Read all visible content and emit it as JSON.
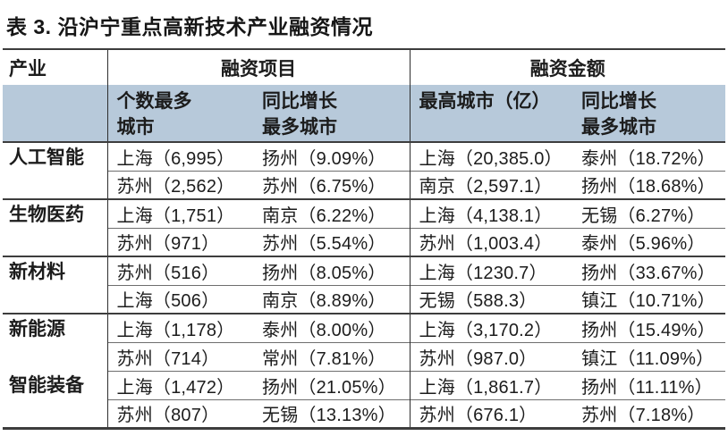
{
  "title": "表 3. 沿沪宁重点高新技术产业融资情况",
  "colors": {
    "header_bg": "#b7c9da",
    "border_dark": "#3d3d3d",
    "border_light": "#6e6e6e",
    "text": "#1c1c1c"
  },
  "table": {
    "col_groups": {
      "industry": "产业",
      "projects": "融资项目",
      "amount": "融资金额"
    },
    "sub_headers": {
      "proj_city": "个数最多\n城市",
      "proj_growth": "同比增长\n最多城市",
      "amt_city": "最高城市（亿）",
      "amt_growth": "同比增长\n最多城市"
    },
    "rows": [
      {
        "industry": "人工智能",
        "sub": [
          {
            "proj_city": "上海（6,995）",
            "proj_growth": "扬州（9.09%）",
            "amt_city": "上海（20,385.0）",
            "amt_growth": "泰州（18.72%）"
          },
          {
            "proj_city": "苏州（2,562）",
            "proj_growth": "苏州（6.75%）",
            "amt_city": "南京（2,597.1）",
            "amt_growth": "扬州（18.68%）"
          }
        ]
      },
      {
        "industry": "生物医药",
        "sub": [
          {
            "proj_city": "上海（1,751）",
            "proj_growth": "南京（6.22%）",
            "amt_city": "上海（4,138.1）",
            "amt_growth": "无锡（6.27%）"
          },
          {
            "proj_city": "苏州（971）",
            "proj_growth": "苏州（5.54%）",
            "amt_city": "苏州（1,003.4）",
            "amt_growth": "泰州（5.96%）"
          }
        ]
      },
      {
        "industry": "新材料",
        "sub": [
          {
            "proj_city": "苏州（516）",
            "proj_growth": "扬州（8.05%）",
            "amt_city": "上海（1230.7）",
            "amt_growth": "扬州（33.67%）"
          },
          {
            "proj_city": "上海（506）",
            "proj_growth": "南京（8.89%）",
            "amt_city": "无锡（588.3）",
            "amt_growth": "镇江（10.71%）"
          }
        ]
      },
      {
        "industry": "新能源",
        "sub": [
          {
            "proj_city": "上海（1,178）",
            "proj_growth": "泰州（8.00%）",
            "amt_city": "上海（3,170.2）",
            "amt_growth": "扬州（15.49%）"
          },
          {
            "proj_city": "苏州（714）",
            "proj_growth": "常州（7.81%）",
            "amt_city": "苏州（987.0）",
            "amt_growth": "镇江（11.09%）"
          }
        ]
      },
      {
        "industry": "智能装备",
        "sub": [
          {
            "proj_city": "上海（1,472）",
            "proj_growth": "扬州（21.05%）",
            "amt_city": "上海（1,861.7）",
            "amt_growth": "扬州（11.11%）"
          },
          {
            "proj_city": "苏州（807）",
            "proj_growth": "无锡（13.13%）",
            "amt_city": "苏州（676.1）",
            "amt_growth": "苏州（7.18%）"
          }
        ]
      }
    ]
  }
}
